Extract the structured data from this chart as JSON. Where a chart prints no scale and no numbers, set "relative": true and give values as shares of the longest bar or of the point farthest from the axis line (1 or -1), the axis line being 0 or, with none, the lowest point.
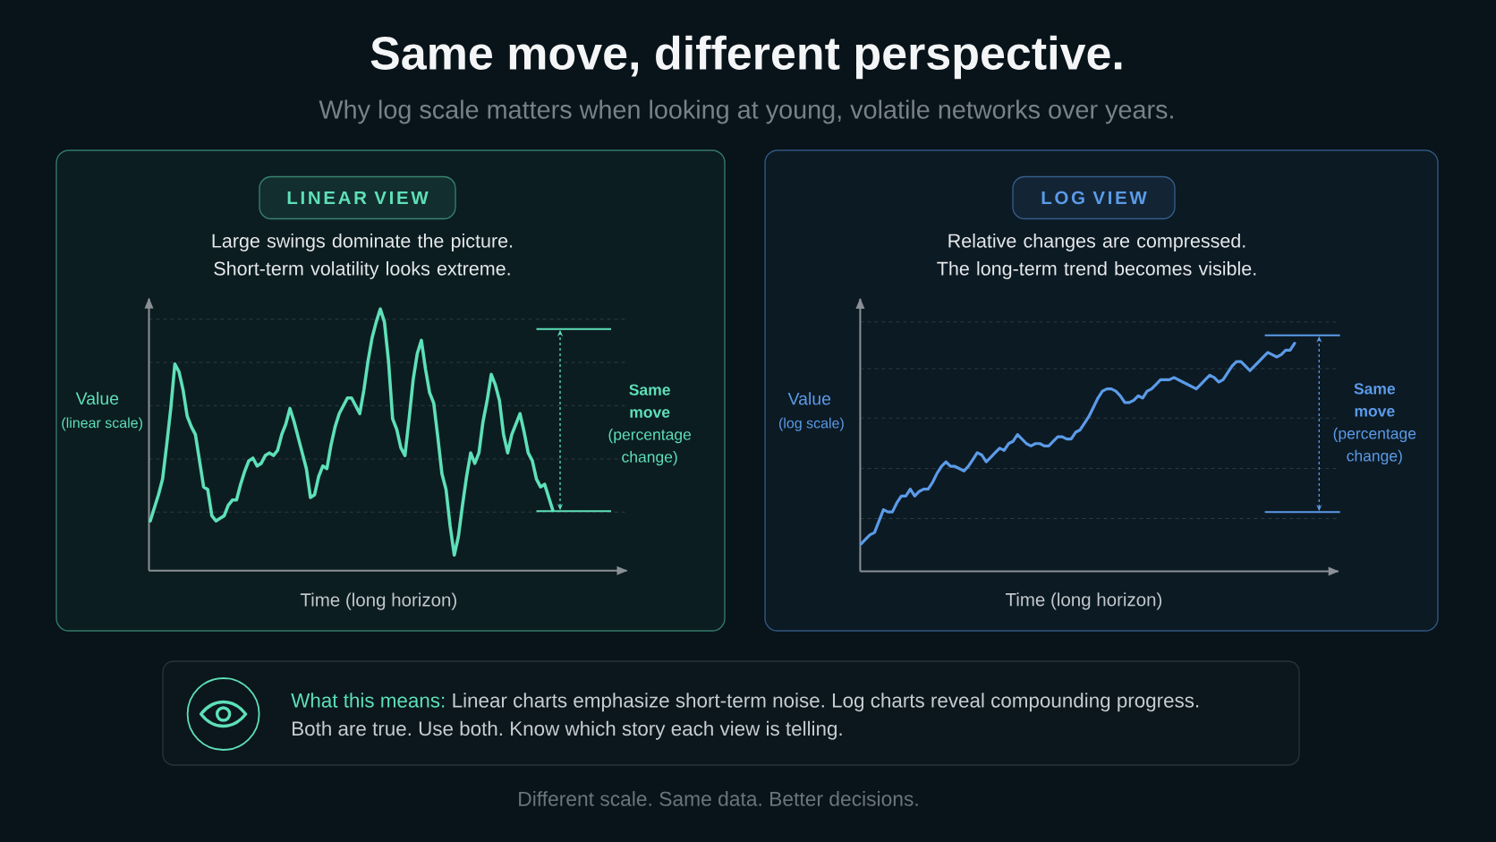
{
  "chart_data": [
    {
      "type": "other",
      "title": "Same move, different perspective.",
      "subtitle": "Why log scale matters when looking at young, volatile networks over years."
    },
    {
      "type": "line",
      "title": "LINEAR VIEW",
      "subtitle": "Large swings dominate the picture. Short-term volatility looks extreme.",
      "xlabel": "Time (long horizon)",
      "ylabel": "Value",
      "annotations": [
        "(linear scale)",
        "**Same move** (percentage change)"
      ],
      "relative": true,
      "grid": "y",
      "categories": [
        null,
        null,
        null,
        null,
        null,
        null,
        null,
        null,
        null,
        null,
        null,
        null,
        null,
        null,
        null,
        null,
        null,
        null,
        null,
        null,
        null,
        null,
        null,
        null,
        null,
        null,
        null,
        null,
        null,
        null,
        null,
        null,
        null,
        null,
        null,
        null,
        null,
        null,
        null,
        null,
        null,
        null,
        null,
        null,
        null,
        null,
        null,
        null,
        null,
        null,
        null,
        null,
        null,
        null,
        null,
        null,
        null,
        null,
        null,
        null,
        null,
        null,
        null,
        null,
        null,
        null,
        null,
        null,
        null,
        null,
        null,
        null,
        null,
        null,
        null,
        null,
        null,
        null,
        null,
        null,
        null,
        null,
        null,
        null,
        null,
        null,
        null,
        null,
        null,
        null,
        null,
        null,
        null,
        null,
        null,
        null,
        null,
        null,
        null
      ],
      "series": [
        {
          "color": "#5ee0b8",
          "values": [
            0.19,
            0.24,
            0.29,
            0.35,
            0.48,
            0.62,
            0.79,
            0.76,
            0.69,
            0.59,
            0.55,
            0.52,
            0.42,
            0.32,
            0.31,
            0.21,
            0.19,
            0.2,
            0.21,
            0.25,
            0.27,
            0.27,
            0.33,
            0.38,
            0.42,
            0.43,
            0.4,
            0.41,
            0.44,
            0.45,
            0.44,
            0.46,
            0.52,
            0.56,
            0.62,
            0.57,
            0.51,
            0.45,
            0.39,
            0.28,
            0.29,
            0.36,
            0.4,
            0.39,
            0.48,
            0.55,
            0.6,
            0.63,
            0.66,
            0.66,
            0.63,
            0.6,
            0.69,
            0.8,
            0.89,
            0.95,
            1.0,
            0.95,
            0.8,
            0.58,
            0.54,
            0.47,
            0.44,
            0.58,
            0.73,
            0.83,
            0.88,
            0.77,
            0.68,
            0.64,
            0.51,
            0.37,
            0.31,
            0.17,
            0.06,
            0.13,
            0.25,
            0.36,
            0.45,
            0.41,
            0.45,
            0.57,
            0.65,
            0.75,
            0.71,
            0.65,
            0.52,
            0.45,
            0.52,
            0.56,
            0.6,
            0.53,
            0.45,
            0.42,
            0.35,
            0.32,
            0.33,
            0.28,
            0.23
          ]
        }
      ]
    },
    {
      "type": "line",
      "title": "LOG VIEW",
      "subtitle": "Relative changes are compressed. The long-term trend becomes visible.",
      "xlabel": "Time (long horizon)",
      "ylabel": "Value",
      "annotations": [
        "(log scale)",
        "**Same move** (percentage change)"
      ],
      "relative": true,
      "grid": "y",
      "categories": [
        null,
        null,
        null,
        null,
        null,
        null,
        null,
        null,
        null,
        null,
        null,
        null,
        null,
        null,
        null,
        null,
        null,
        null,
        null,
        null,
        null,
        null,
        null,
        null,
        null,
        null,
        null,
        null,
        null,
        null,
        null,
        null,
        null,
        null,
        null,
        null,
        null,
        null,
        null,
        null,
        null,
        null,
        null,
        null,
        null,
        null,
        null,
        null,
        null,
        null,
        null,
        null,
        null,
        null,
        null,
        null,
        null,
        null,
        null,
        null,
        null,
        null,
        null,
        null,
        null,
        null,
        null,
        null,
        null,
        null,
        null,
        null,
        null,
        null,
        null,
        null,
        null,
        null,
        null,
        null,
        null,
        null,
        null,
        null,
        null,
        null,
        null,
        null,
        null,
        null,
        null,
        null,
        null,
        null,
        null,
        null,
        null,
        null
      ],
      "series": [
        {
          "color": "#5b9be8",
          "values": [
            0.12,
            0.14,
            0.16,
            0.17,
            0.22,
            0.27,
            0.26,
            0.26,
            0.3,
            0.33,
            0.33,
            0.36,
            0.33,
            0.35,
            0.36,
            0.36,
            0.39,
            0.43,
            0.46,
            0.48,
            0.46,
            0.46,
            0.45,
            0.44,
            0.46,
            0.49,
            0.52,
            0.51,
            0.48,
            0.5,
            0.52,
            0.54,
            0.53,
            0.56,
            0.57,
            0.6,
            0.58,
            0.56,
            0.55,
            0.56,
            0.56,
            0.55,
            0.55,
            0.57,
            0.59,
            0.59,
            0.58,
            0.58,
            0.61,
            0.62,
            0.65,
            0.68,
            0.72,
            0.76,
            0.79,
            0.8,
            0.8,
            0.79,
            0.77,
            0.74,
            0.74,
            0.75,
            0.77,
            0.76,
            0.79,
            0.8,
            0.82,
            0.84,
            0.84,
            0.84,
            0.85,
            0.84,
            0.83,
            0.82,
            0.81,
            0.8,
            0.82,
            0.84,
            0.86,
            0.85,
            0.83,
            0.84,
            0.87,
            0.9,
            0.92,
            0.92,
            0.9,
            0.88,
            0.9,
            0.92,
            0.94,
            0.96,
            0.95,
            0.94,
            0.95,
            0.97,
            0.97,
            1.0
          ]
        }
      ]
    },
    {
      "type": "other",
      "title": "What this means:",
      "annotations": [
        "Linear charts emphasize short-term noise. Log charts reveal compounding progress.",
        "Both are true. Use both. Know which story each view is telling.",
        "Different scale. Same data. Better decisions."
      ]
    }
  ]
}
